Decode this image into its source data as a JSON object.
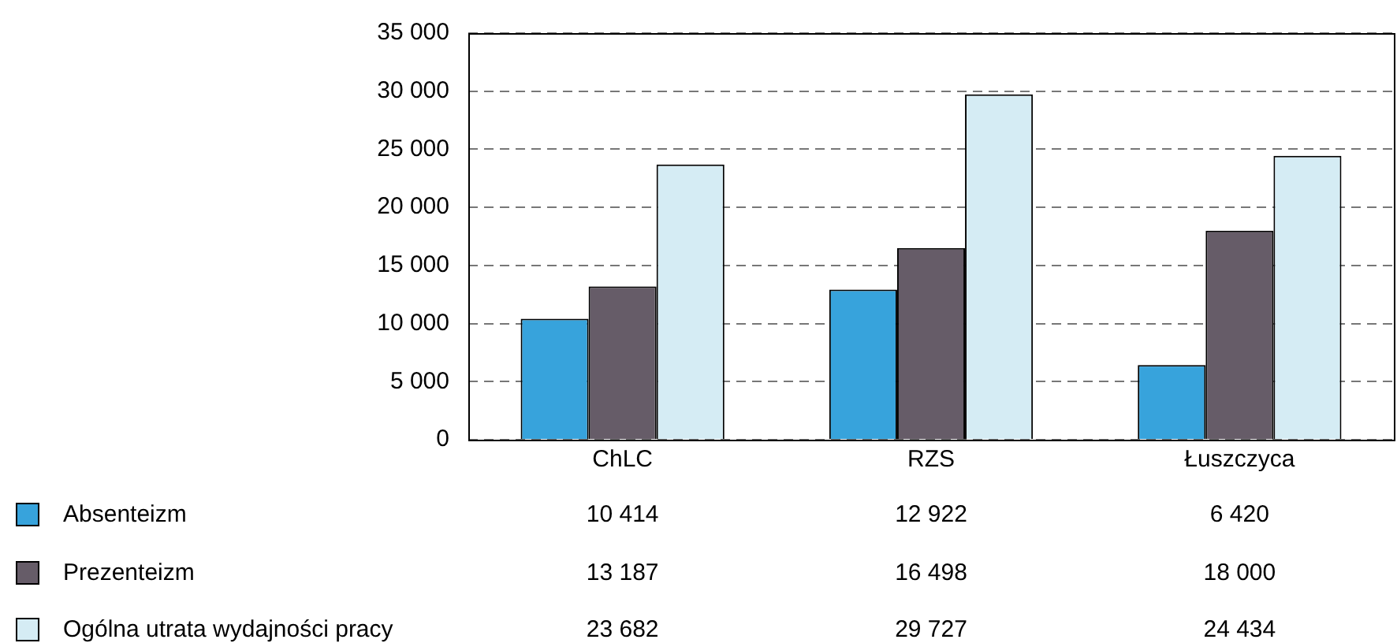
{
  "chart_data": {
    "type": "bar",
    "categories": [
      "ChLC",
      "RZS",
      "Łuszczyca"
    ],
    "series": [
      {
        "name": "Absenteizm",
        "color": "#37a3dc",
        "values": [
          10414,
          12922,
          6420
        ],
        "value_labels": [
          "10 414",
          "12 922",
          "6 420"
        ]
      },
      {
        "name": "Prezenteizm",
        "color": "#665c68",
        "values": [
          13187,
          16498,
          18000
        ],
        "value_labels": [
          "13 187",
          "16 498",
          "18 000"
        ]
      },
      {
        "name": "Ogólna utrata wydajności pracy",
        "color": "#d5ecf4",
        "values": [
          23682,
          29727,
          24434
        ],
        "value_labels": [
          "23 682",
          "29 727",
          "24 434"
        ]
      }
    ],
    "ylim": [
      0,
      35000
    ],
    "yticks": [
      {
        "value": 0,
        "label": "0"
      },
      {
        "value": 5000,
        "label": "5 000"
      },
      {
        "value": 10000,
        "label": "10 000"
      },
      {
        "value": 15000,
        "label": "15 000"
      },
      {
        "value": 20000,
        "label": "20 000"
      },
      {
        "value": 25000,
        "label": "25 000"
      },
      {
        "value": 30000,
        "label": "30 000"
      },
      {
        "value": 35000,
        "label": "35 000"
      }
    ],
    "grid": "y",
    "legend": "bottom left"
  }
}
